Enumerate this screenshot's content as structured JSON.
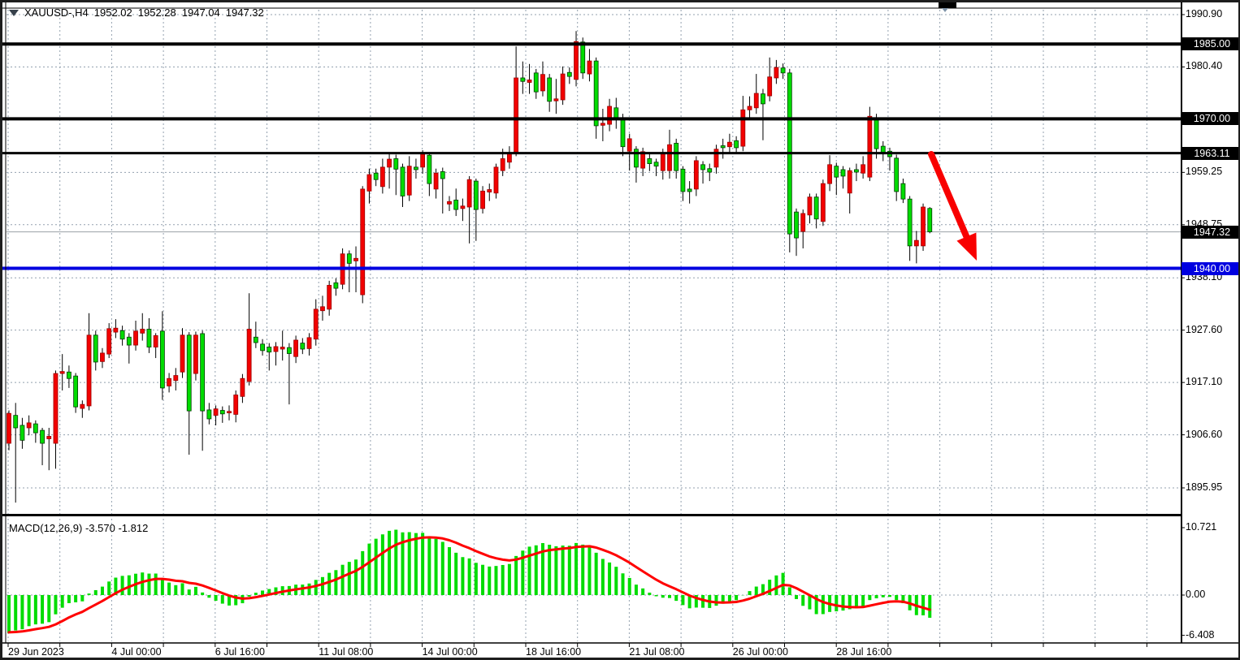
{
  "header": {
    "symbol": "XAUUSD-,H4",
    "open": "1952.02",
    "high": "1952.28",
    "low": "1947.04",
    "close": "1947.32"
  },
  "price_axis": {
    "plain_labels": [
      {
        "text": "1990.90",
        "price": 1990.9
      },
      {
        "text": "1980.40",
        "price": 1980.4
      },
      {
        "text": "1959.25",
        "price": 1959.25
      },
      {
        "text": "1948.75",
        "price": 1948.75
      },
      {
        "text": "1938.10",
        "price": 1938.1
      },
      {
        "text": "1927.60",
        "price": 1927.6
      },
      {
        "text": "1917.10",
        "price": 1917.1
      },
      {
        "text": "1906.60",
        "price": 1906.6
      },
      {
        "text": "1895.95",
        "price": 1895.95
      }
    ],
    "badges": [
      {
        "text": "1985.00",
        "price": 1985.0,
        "bg": "#000000"
      },
      {
        "text": "1970.00",
        "price": 1970.0,
        "bg": "#000000"
      },
      {
        "text": "1963.11",
        "price": 1963.11,
        "bg": "#000000"
      },
      {
        "text": "1947.32",
        "price": 1947.32,
        "bg": "#000000"
      },
      {
        "text": "1940.00",
        "price": 1940.0,
        "bg": "#0000e0"
      }
    ]
  },
  "time_axis": {
    "labels": [
      "29 Jun 2023",
      "4 Jul 00:00",
      "6 Jul 16:00",
      "11 Jul 08:00",
      "14 Jul 00:00",
      "18 Jul 16:00",
      "21 Jul 08:00",
      "26 Jul 00:00",
      "28 Jul 16:00"
    ]
  },
  "macd_pane": {
    "label": "MACD(12,26,9)",
    "value": "-3.570",
    "signal_value": "-1.812",
    "axis_labels": [
      {
        "text": "10.721",
        "v": 10.721
      },
      {
        "text": "0.00",
        "v": 0.0
      },
      {
        "text": "-6.408",
        "v": -6.408
      }
    ]
  },
  "colors": {
    "bull_fill": "#f20000",
    "bull_stroke": "#9b0000",
    "bear_fill": "#00dc00",
    "bear_stroke": "#003c00",
    "wick": "#000000",
    "grid": "#93a1af",
    "level_black": "#000000",
    "level_blue": "#0000e0",
    "current_line": "#9aa0a6",
    "hist": "#00dc00",
    "signal": "#ff0000",
    "arrow": "#f80000"
  },
  "annotations": {
    "trend_arrow": {
      "from": [
        1143,
        187
      ],
      "to": [
        1199,
        318
      ]
    },
    "top_marker_x": 1160,
    "top_rect": {
      "x": 1152,
      "w": 22
    }
  },
  "chart_data": {
    "type": "candlestick",
    "title": "XAUUSD- H4 with MACD(12,26,9)",
    "symbol": "XAUUSD-",
    "timeframe": "H4",
    "last_bar": {
      "open": 1952.02,
      "high": 1952.28,
      "low": 1947.04,
      "close": 1947.32
    },
    "horizontal_levels": [
      {
        "price": 1985.0,
        "color": "black",
        "width": 4
      },
      {
        "price": 1970.0,
        "color": "black",
        "width": 4
      },
      {
        "price": 1963.11,
        "color": "black",
        "width": 3
      },
      {
        "price": 1940.0,
        "color": "blue",
        "width": 4
      },
      {
        "price": 1947.32,
        "color": "silver",
        "width": 1,
        "role": "current-price"
      }
    ],
    "ylim": [
      1890.5,
      1992.0
    ],
    "grid_prices": [
      1990.9,
      1980.4,
      1969.9,
      1959.25,
      1948.75,
      1938.1,
      1927.6,
      1917.1,
      1906.6,
      1895.95
    ],
    "candles": [
      [
        1904.9,
        1911.5,
        1903.5,
        1910.9
      ],
      [
        1910.5,
        1913.0,
        1893.0,
        1908.0
      ],
      [
        1908.5,
        1910.0,
        1903.8,
        1905.5
      ],
      [
        1908.0,
        1910.5,
        1906.5,
        1909.0
      ],
      [
        1908.8,
        1909.5,
        1905.0,
        1907.0
      ],
      [
        1907.5,
        1908.0,
        1900.5,
        1904.9
      ],
      [
        1905.8,
        1908.0,
        1899.5,
        1906.3
      ],
      [
        1904.9,
        1919.5,
        1899.8,
        1918.9
      ],
      [
        1918.9,
        1922.8,
        1915.5,
        1919.3
      ],
      [
        1919.2,
        1920.5,
        1916.0,
        1917.9
      ],
      [
        1918.4,
        1919.0,
        1911.0,
        1912.2
      ],
      [
        1911.9,
        1913.5,
        1910.0,
        1912.7
      ],
      [
        1912.4,
        1931.0,
        1911.5,
        1926.6
      ],
      [
        1926.6,
        1927.5,
        1919.5,
        1921.2
      ],
      [
        1921.3,
        1924.0,
        1920.0,
        1923.0
      ],
      [
        1922.8,
        1929.0,
        1922.0,
        1927.9
      ],
      [
        1927.2,
        1929.8,
        1926.0,
        1928.0
      ],
      [
        1927.5,
        1928.5,
        1924.5,
        1925.8
      ],
      [
        1926.2,
        1927.0,
        1920.9,
        1924.6
      ],
      [
        1924.6,
        1929.5,
        1923.5,
        1927.4
      ],
      [
        1927.0,
        1931.0,
        1925.5,
        1927.8
      ],
      [
        1927.8,
        1930.0,
        1923.0,
        1924.2
      ],
      [
        1924.2,
        1927.0,
        1922.0,
        1926.5
      ],
      [
        1927.4,
        1931.4,
        1913.6,
        1916.0
      ],
      [
        1916.4,
        1919.0,
        1915.1,
        1917.9
      ],
      [
        1917.5,
        1920.0,
        1915.5,
        1918.5
      ],
      [
        1919.2,
        1928.0,
        1918.0,
        1926.6
      ],
      [
        1926.6,
        1927.2,
        1902.6,
        1911.4
      ],
      [
        1918.9,
        1927.3,
        1917.5,
        1926.6
      ],
      [
        1926.9,
        1927.5,
        1903.4,
        1911.4
      ],
      [
        1911.6,
        1913.0,
        1908.7,
        1909.8
      ],
      [
        1910.5,
        1912.5,
        1908.5,
        1911.8
      ],
      [
        1911.5,
        1912.3,
        1909.0,
        1910.8
      ],
      [
        1911.0,
        1912.5,
        1909.5,
        1911.3
      ],
      [
        1910.7,
        1915.5,
        1909.1,
        1914.6
      ],
      [
        1914.3,
        1918.8,
        1913.0,
        1917.9
      ],
      [
        1917.3,
        1935.0,
        1916.5,
        1927.8
      ],
      [
        1926.2,
        1929.3,
        1924.0,
        1925.1
      ],
      [
        1924.8,
        1925.8,
        1922.5,
        1923.5
      ],
      [
        1924.2,
        1925.0,
        1919.5,
        1923.2
      ],
      [
        1923.3,
        1925.2,
        1920.5,
        1924.3
      ],
      [
        1923.8,
        1927.5,
        1921.5,
        1924.2
      ],
      [
        1924.1,
        1925.0,
        1912.7,
        1922.9
      ],
      [
        1922.3,
        1926.5,
        1921.0,
        1925.6
      ],
      [
        1925.0,
        1926.0,
        1922.8,
        1923.8
      ],
      [
        1923.9,
        1927.0,
        1922.5,
        1926.1
      ],
      [
        1925.8,
        1933.8,
        1924.5,
        1931.8
      ],
      [
        1931.5,
        1934.5,
        1929.5,
        1932.3
      ],
      [
        1931.8,
        1937.5,
        1930.5,
        1936.6
      ],
      [
        1937.1,
        1938.0,
        1934.5,
        1936.0
      ],
      [
        1936.8,
        1944.0,
        1935.8,
        1942.9
      ],
      [
        1942.9,
        1943.6,
        1935.2,
        1941.0
      ],
      [
        1941.5,
        1944.4,
        1935.2,
        1942.0
      ],
      [
        1934.7,
        1956.5,
        1933.0,
        1955.9
      ],
      [
        1955.5,
        1960.0,
        1953.0,
        1958.8
      ],
      [
        1959.1,
        1960.0,
        1956.5,
        1957.8
      ],
      [
        1956.4,
        1962.0,
        1955.0,
        1960.3
      ],
      [
        1960.3,
        1963.0,
        1956.0,
        1961.9
      ],
      [
        1962.0,
        1962.8,
        1954.7,
        1959.9
      ],
      [
        1960.3,
        1961.0,
        1952.3,
        1954.5
      ],
      [
        1954.7,
        1962.5,
        1953.5,
        1960.5
      ],
      [
        1960.3,
        1962.0,
        1958.0,
        1959.8
      ],
      [
        1960.3,
        1963.7,
        1959.0,
        1962.9
      ],
      [
        1962.7,
        1963.3,
        1954.5,
        1957.0
      ],
      [
        1955.9,
        1960.0,
        1954.0,
        1959.1
      ],
      [
        1959.4,
        1960.2,
        1951.0,
        1958.0
      ],
      [
        1952.9,
        1954.5,
        1951.5,
        1953.4
      ],
      [
        1953.7,
        1956.0,
        1950.5,
        1951.8
      ],
      [
        1952.0,
        1954.0,
        1949.5,
        1952.5
      ],
      [
        1952.3,
        1958.5,
        1945.0,
        1957.8
      ],
      [
        1957.5,
        1958.0,
        1945.5,
        1951.8
      ],
      [
        1952.0,
        1956.5,
        1951.0,
        1955.5
      ],
      [
        1955.3,
        1957.0,
        1953.5,
        1955.8
      ],
      [
        1955.1,
        1961.0,
        1954.0,
        1960.3
      ],
      [
        1959.6,
        1964.0,
        1958.5,
        1962.0
      ],
      [
        1961.3,
        1964.5,
        1960.0,
        1963.2
      ],
      [
        1963.2,
        1984.5,
        1962.5,
        1978.2
      ],
      [
        1978.2,
        1981.5,
        1975.0,
        1977.5
      ],
      [
        1977.3,
        1981.0,
        1975.0,
        1977.8
      ],
      [
        1979.2,
        1980.0,
        1974.0,
        1975.4
      ],
      [
        1975.6,
        1981.5,
        1974.5,
        1978.9
      ],
      [
        1978.2,
        1979.0,
        1971.4,
        1973.5
      ],
      [
        1973.6,
        1978.0,
        1971.0,
        1974.0
      ],
      [
        1973.8,
        1980.5,
        1972.8,
        1979.0
      ],
      [
        1979.3,
        1980.3,
        1977.0,
        1978.5
      ],
      [
        1977.9,
        1987.6,
        1976.5,
        1985.5
      ],
      [
        1985.4,
        1986.3,
        1978.0,
        1979.2
      ],
      [
        1979.0,
        1984.0,
        1977.5,
        1981.6
      ],
      [
        1981.6,
        1982.3,
        1966.0,
        1968.6
      ],
      [
        1968.7,
        1972.0,
        1965.5,
        1969.1
      ],
      [
        1968.9,
        1974.0,
        1967.5,
        1972.5
      ],
      [
        1972.2,
        1974.2,
        1968.0,
        1970.2
      ],
      [
        1970.2,
        1971.0,
        1962.5,
        1964.4
      ],
      [
        1963.5,
        1967.0,
        1959.6,
        1966.0
      ],
      [
        1963.9,
        1964.5,
        1957.2,
        1960.3
      ],
      [
        1960.1,
        1964.2,
        1958.5,
        1963.4
      ],
      [
        1962.0,
        1963.0,
        1959.5,
        1961.0
      ],
      [
        1961.3,
        1962.0,
        1958.5,
        1960.5
      ],
      [
        1959.6,
        1964.0,
        1957.8,
        1963.2
      ],
      [
        1959.6,
        1967.8,
        1958.0,
        1964.8
      ],
      [
        1965.1,
        1966.0,
        1958.0,
        1959.6
      ],
      [
        1959.9,
        1960.5,
        1953.5,
        1955.4
      ],
      [
        1955.9,
        1957.5,
        1953.0,
        1955.4
      ],
      [
        1955.9,
        1962.5,
        1954.5,
        1961.6
      ],
      [
        1960.8,
        1961.5,
        1957.0,
        1959.8
      ],
      [
        1960.0,
        1961.0,
        1957.5,
        1959.3
      ],
      [
        1960.3,
        1964.8,
        1959.0,
        1963.9
      ],
      [
        1964.6,
        1966.0,
        1962.0,
        1964.2
      ],
      [
        1964.4,
        1967.0,
        1963.0,
        1965.3
      ],
      [
        1965.6,
        1966.5,
        1963.0,
        1964.2
      ],
      [
        1964.5,
        1974.6,
        1963.5,
        1971.8
      ],
      [
        1971.8,
        1974.5,
        1970.0,
        1972.5
      ],
      [
        1972.2,
        1979.0,
        1971.0,
        1975.1
      ],
      [
        1975.0,
        1976.0,
        1965.7,
        1973.0
      ],
      [
        1974.6,
        1982.3,
        1973.5,
        1978.4
      ],
      [
        1978.2,
        1981.8,
        1977.0,
        1980.3
      ],
      [
        1980.2,
        1981.1,
        1978.0,
        1979.2
      ],
      [
        1979.2,
        1980.0,
        1943.2,
        1946.9
      ],
      [
        1951.3,
        1952.0,
        1942.5,
        1946.1
      ],
      [
        1947.4,
        1951.8,
        1944.0,
        1951.0
      ],
      [
        1950.7,
        1955.0,
        1949.0,
        1954.3
      ],
      [
        1954.3,
        1955.0,
        1948.0,
        1949.9
      ],
      [
        1949.4,
        1957.8,
        1948.5,
        1957.0
      ],
      [
        1957.0,
        1962.7,
        1955.5,
        1960.8
      ],
      [
        1960.5,
        1961.2,
        1954.7,
        1958.3
      ],
      [
        1959.8,
        1960.5,
        1956.0,
        1958.5
      ],
      [
        1955.1,
        1960.2,
        1951.0,
        1959.6
      ],
      [
        1959.8,
        1961.0,
        1957.5,
        1959.3
      ],
      [
        1959.1,
        1962.5,
        1958.0,
        1960.8
      ],
      [
        1958.3,
        1972.4,
        1957.5,
        1970.5
      ],
      [
        1970.2,
        1971.0,
        1962.0,
        1964.0
      ],
      [
        1964.5,
        1965.5,
        1961.5,
        1963.2
      ],
      [
        1963.5,
        1964.2,
        1959.6,
        1962.4
      ],
      [
        1962.1,
        1962.8,
        1953.5,
        1955.4
      ],
      [
        1957.0,
        1958.0,
        1953.1,
        1953.9
      ],
      [
        1953.9,
        1954.5,
        1941.5,
        1944.5
      ],
      [
        1944.5,
        1947.5,
        1941.0,
        1945.6
      ],
      [
        1944.5,
        1953.0,
        1943.5,
        1952.3
      ],
      [
        1952.02,
        1952.28,
        1947.04,
        1947.32
      ]
    ],
    "indicator": {
      "name": "MACD",
      "params": [
        12,
        26,
        9
      ],
      "value": -3.57,
      "signal": -1.812,
      "axis_range_labels": [
        10.721,
        0.0,
        -6.408
      ]
    }
  }
}
